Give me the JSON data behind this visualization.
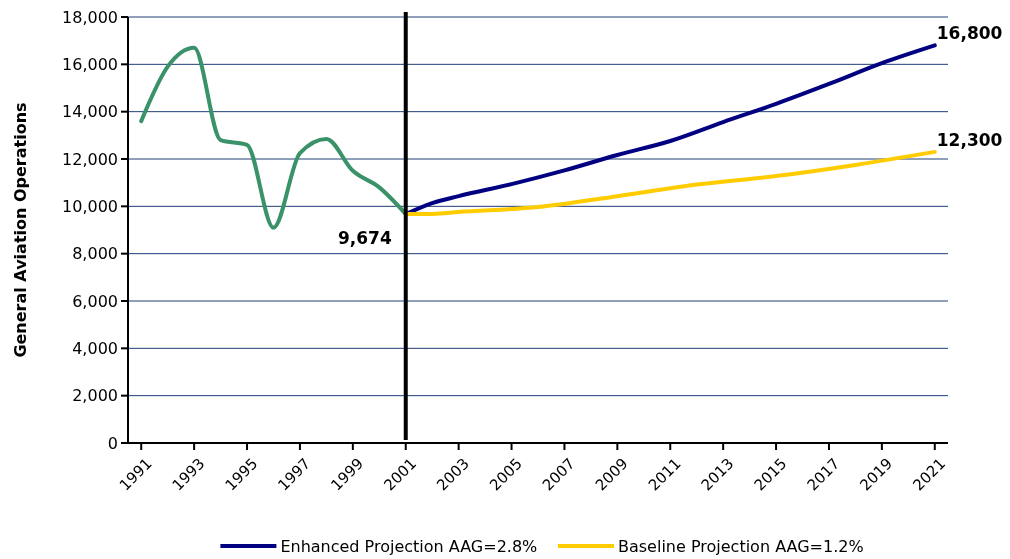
{
  "chart_data": {
    "type": "line",
    "ylabel": "General Aviation Operations",
    "xlim": [
      1990.5,
      2021.5
    ],
    "xticks": [
      1991,
      1993,
      1995,
      1997,
      1999,
      2001,
      2003,
      2005,
      2007,
      2009,
      2011,
      2013,
      2015,
      2017,
      2019,
      2021
    ],
    "ylim": [
      0,
      18000
    ],
    "yticks": [
      {
        "value": 0,
        "label": "0"
      },
      {
        "value": 2000,
        "label": "2,000"
      },
      {
        "value": 4000,
        "label": "4,000"
      },
      {
        "value": 6000,
        "label": "6,000"
      },
      {
        "value": 8000,
        "label": "8,000"
      },
      {
        "value": 10000,
        "label": "10,000"
      },
      {
        "value": 12000,
        "label": "12,000"
      },
      {
        "value": 14000,
        "label": "14,000"
      },
      {
        "value": 16000,
        "label": "16,000"
      },
      {
        "value": 18000,
        "label": "18,000"
      }
    ],
    "grid": "y",
    "legend": "bottom",
    "line_style": "solid",
    "series": [
      {
        "color": "#3a9268",
        "x": [
          1991,
          1992,
          1993,
          1994,
          1995,
          1996,
          1997,
          1998,
          1999,
          2000,
          2001
        ],
        "values": [
          13600,
          15900,
          16700,
          12800,
          12600,
          9100,
          12250,
          12850,
          11500,
          10800,
          9674
        ],
        "value_labels": [
          null,
          null,
          null,
          null,
          null,
          null,
          null,
          null,
          null,
          null,
          "9,674"
        ]
      },
      {
        "name": "Enhanced Projection AAG=2.8%",
        "color": "#000080",
        "x": [
          2001,
          2002,
          2003,
          2005,
          2007,
          2009,
          2011,
          2013,
          2015,
          2017,
          2019,
          2021
        ],
        "values": [
          9674,
          10140,
          10430,
          10940,
          11520,
          12170,
          12760,
          13560,
          14330,
          15170,
          16050,
          16800
        ],
        "value_labels": [
          null,
          null,
          null,
          null,
          null,
          null,
          null,
          null,
          null,
          null,
          null,
          "16,800"
        ]
      },
      {
        "name": "Baseline Projection AAG=1.2%",
        "color": "#ffcc00",
        "x": [
          2001,
          2002,
          2003,
          2006,
          2009,
          2012,
          2015,
          2018,
          2021
        ],
        "values": [
          9674,
          9680,
          9760,
          9970,
          10430,
          10920,
          11280,
          11750,
          12300
        ],
        "value_labels": [
          null,
          null,
          null,
          null,
          null,
          null,
          null,
          null,
          "12,300"
        ]
      }
    ],
    "ref_lines": [
      {
        "axis": "x",
        "value": 2001,
        "color": "#000000"
      }
    ]
  }
}
